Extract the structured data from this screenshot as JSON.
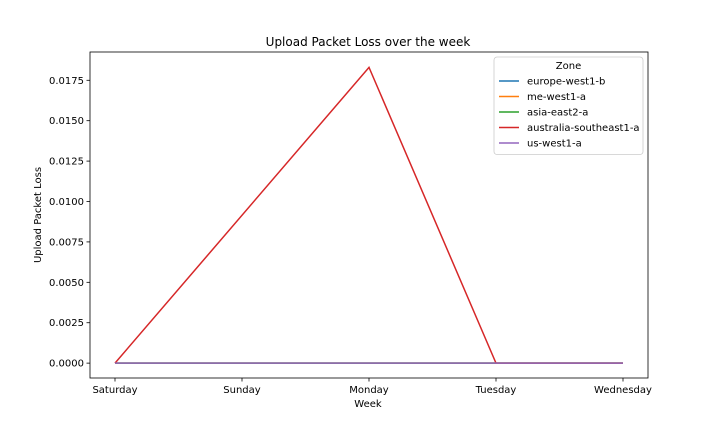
{
  "chart_data": {
    "type": "line",
    "title": "Upload Packet Loss over the week",
    "xlabel": "Week",
    "ylabel": "Upload Packet Loss",
    "categories": [
      "Saturday",
      "Sunday",
      "Monday",
      "Tuesday",
      "Wednesday"
    ],
    "ylim": [
      -0.00092,
      0.01925
    ],
    "yticks": [
      "0.0000",
      "0.0025",
      "0.0050",
      "0.0075",
      "0.0100",
      "0.0125",
      "0.0150",
      "0.0175"
    ],
    "grid": false,
    "legend": {
      "title": "Zone",
      "placement": "top-right"
    },
    "series": [
      {
        "name": "europe-west1-b",
        "color": "#1f77b4",
        "x": [
          "Saturday",
          "Wednesday"
        ],
        "values": [
          0,
          0
        ]
      },
      {
        "name": "me-west1-a",
        "color": "#ff7f0e",
        "x": [
          "Saturday",
          "Wednesday"
        ],
        "values": [
          0,
          0
        ]
      },
      {
        "name": "asia-east2-a",
        "color": "#2ca02c",
        "x": [
          "Saturday",
          "Wednesday"
        ],
        "values": [
          0,
          0
        ]
      },
      {
        "name": "australia-southeast1-a",
        "color": "#d62728",
        "x": [
          "Saturday",
          "Monday",
          "Tuesday",
          "Wednesday"
        ],
        "values": [
          0,
          0.0183,
          0,
          0
        ]
      },
      {
        "name": "us-west1-a",
        "color": "#9467bd",
        "x": [
          "Saturday",
          "Wednesday"
        ],
        "values": [
          0,
          0
        ]
      }
    ]
  }
}
